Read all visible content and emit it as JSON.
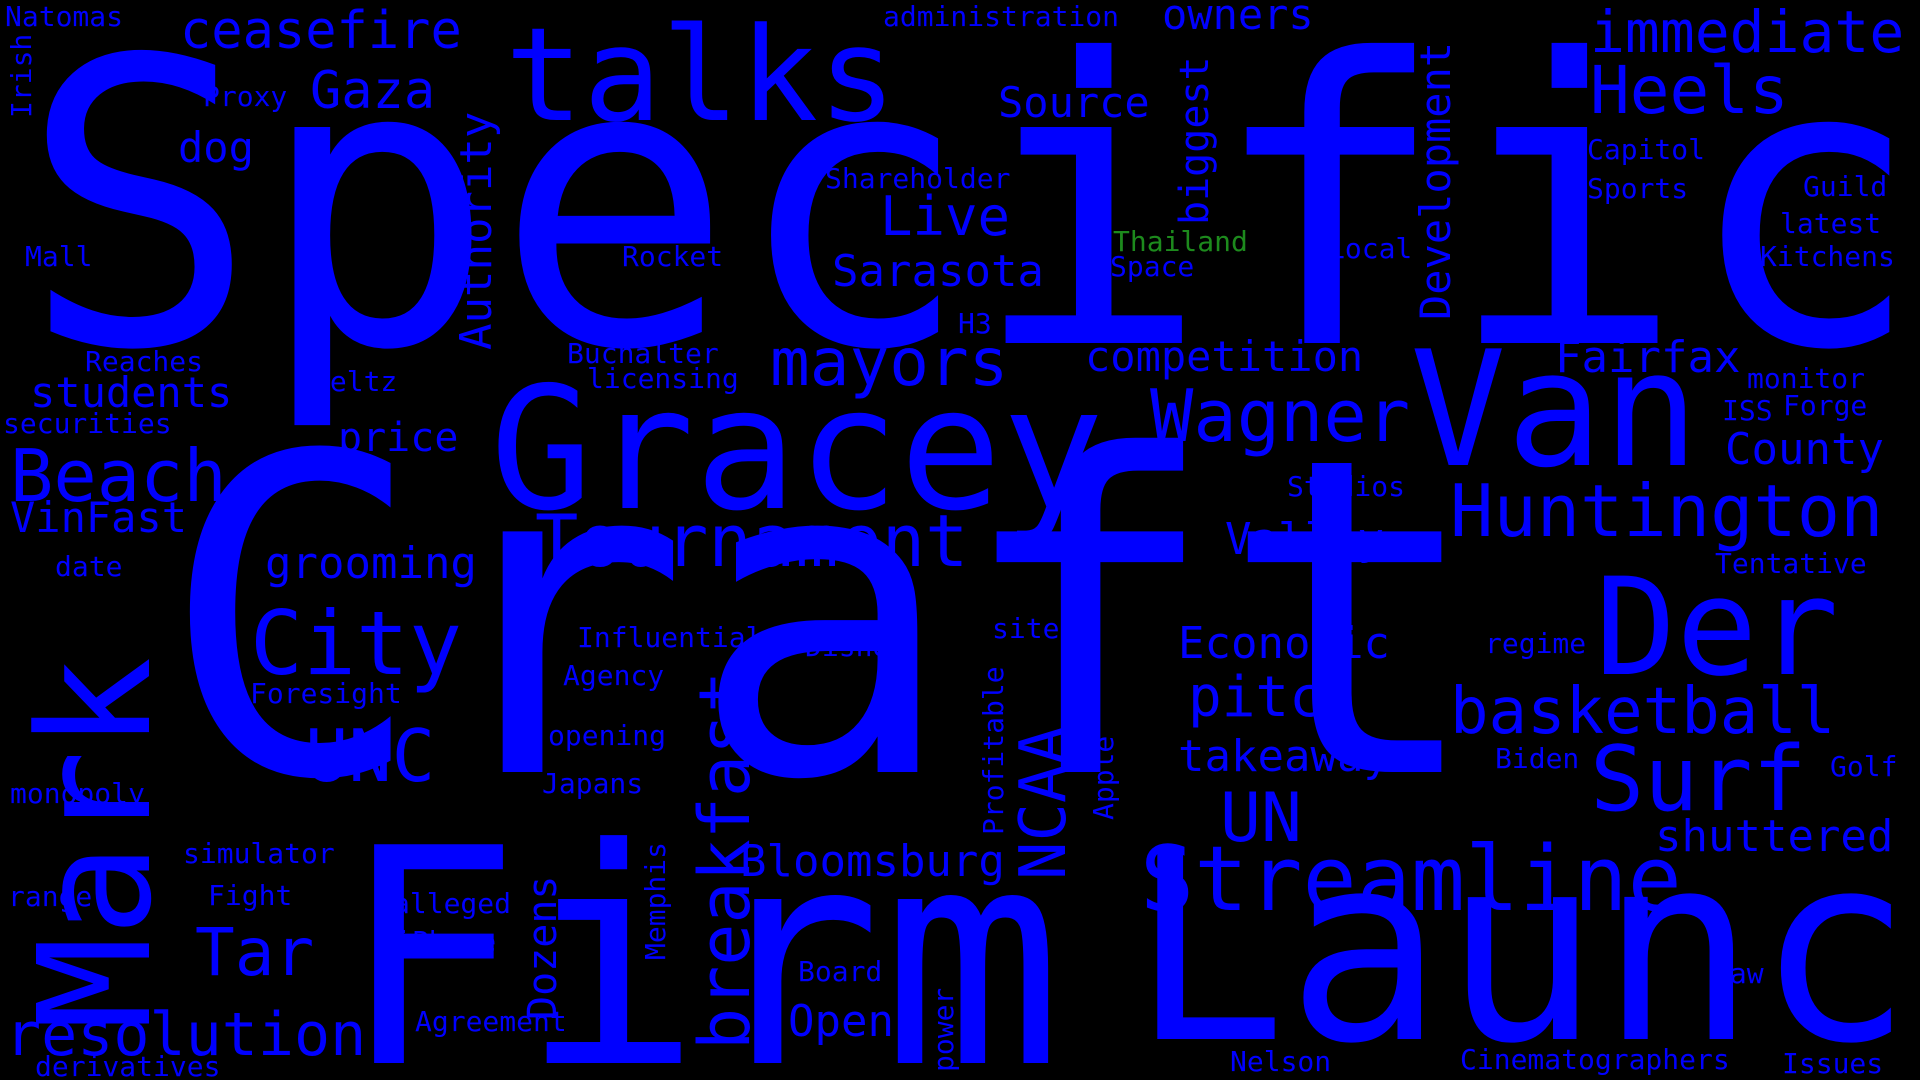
{
  "colors": {
    "background": "#000000",
    "primary": "#0000ff",
    "accent": "#1d8a1d"
  },
  "words": {
    "specific": "Specific",
    "craft": "Craft",
    "firm": "Firm",
    "launch": "Launch",
    "gracey": "Gracey",
    "van": "Van",
    "talks": "talks",
    "der": "Der",
    "mark": "Mark",
    "streamline": "Streamline",
    "huntington": "Huntington",
    "surf": "Surf",
    "basketball": "basketball",
    "tournament": "Tournament",
    "city": "City",
    "wagner": "Wagner",
    "beach": "Beach",
    "mayors": "mayors",
    "breakfast": "breakfast",
    "unc": "UNC",
    "un": "UN",
    "resolution": "resolution",
    "heels": "Heels",
    "immediate": "immediate",
    "ceasefire": "ceasefire",
    "tar": "Tar",
    "gaza": "Gaza",
    "ncaa": "NCAA",
    "pitch": "pitch",
    "live": "Live",
    "sarasota": "Sarasota",
    "authority": "Authority",
    "development": "Development",
    "economic": "Economic",
    "shuttered": "shuttered",
    "takeaway": "takeaway",
    "bloomsburg": "Bloomsburg",
    "fairfax": "Fairfax",
    "county": "County",
    "valley": "Valley",
    "competition": "competition",
    "grooming": "grooming",
    "open": "Open",
    "students": "students",
    "source": "Source",
    "owners": "owners",
    "vinfast": "VinFast",
    "biggest": "biggest",
    "price": "price",
    "dozens": "Dozens",
    "dog": "dog",
    "administration": "administration",
    "natomas": "Natomas",
    "irish": "Irish",
    "proxy": "Proxy",
    "shareholder": "Shareholder",
    "capitol": "Capitol",
    "sports": "Sports",
    "guild": "Guild",
    "latest": "latest",
    "kitchens": "Kitchens",
    "thailand": "Thailand",
    "space": "Space",
    "local": "Local",
    "rocket": "Rocket",
    "mall": "Mall",
    "h3": "H3",
    "reaches": "Reaches",
    "buchalter": "Buchalter",
    "licensing": "licensing",
    "peltz": "Peltz",
    "securities": "securities",
    "monitor": "monitor",
    "iss": "ISS",
    "forge": "Forge",
    "studios": "Studios",
    "date": "date",
    "tentative": "Tentative",
    "influential": "Influential",
    "site": "site",
    "disney": "Disney",
    "regime": "regime",
    "agency": "Agency",
    "foresight": "Foresight",
    "opening": "opening",
    "profitable": "Profitable",
    "apple": "Apple",
    "japans": "Japans",
    "biden": "Biden",
    "golf": "Golf",
    "monopoly": "monopoly",
    "simulator": "simulator",
    "memphis": "Memphis",
    "fight": "Fight",
    "alleged": "alleged",
    "range": "range",
    "iphone": "iPhone",
    "board": "Board",
    "law": "law",
    "power": "power",
    "agreement": "Agreement",
    "nelson": "Nelson",
    "cinematographers": "Cinematographers",
    "issues": "Issues",
    "derivatives": "derivatives"
  }
}
